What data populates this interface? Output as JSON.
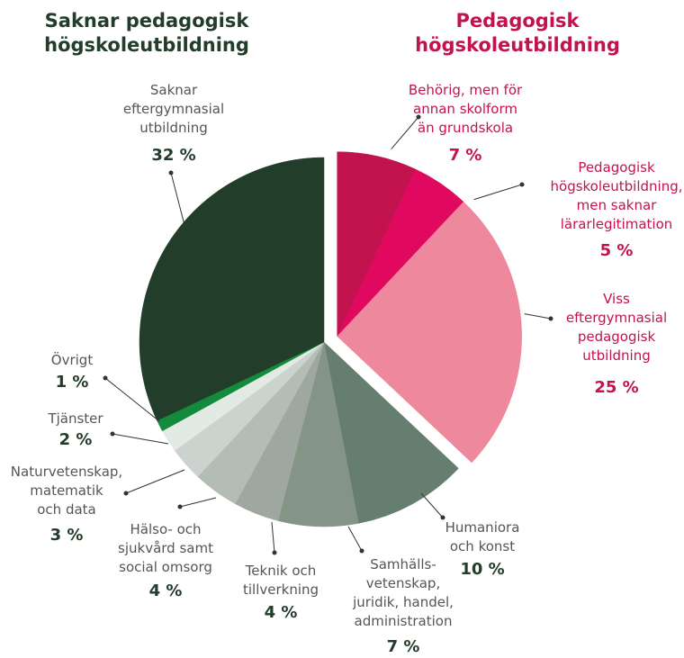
{
  "chart_data": {
    "type": "pie",
    "groups": [
      {
        "title": "Pedagogisk\nhögskoleutbildning",
        "color": "#c2134f",
        "explode": true,
        "categories": [
          "Behörig, men för\nannan skolform\nän grundskola",
          "Pedagogisk\nhögskoleutbildning,\nmen saknar\nlärarlegitimation",
          "Viss\neftergymnasial\npedagogisk\nutbildning"
        ],
        "values": [
          7,
          5,
          25
        ],
        "value_labels": [
          "7 %",
          "5 %",
          "25 %"
        ],
        "colors": [
          "#c2134f",
          "#e0095f",
          "#ee889c"
        ]
      },
      {
        "title": "Saknar pedagogisk\nhögskoleutbildning",
        "color": "#233d2b",
        "explode": false,
        "categories": [
          "Humaniora\noch konst",
          "Samhälls-\nvetenskap,\njuridik, handel,\nadministration",
          "Teknik och\ntillverkning",
          "Hälso- och\nsjukvård samt\nsocial omsorg",
          "Naturvetenskap,\nmatematik\noch data",
          "Tjänster",
          "Övrigt",
          "Saknar\neftergymnasial\nutbildning"
        ],
        "values": [
          10,
          7,
          4,
          4,
          3,
          2,
          1,
          32
        ],
        "value_labels": [
          "10 %",
          "7 %",
          "4 %",
          "4 %",
          "3 %",
          "2 %",
          "1 %",
          "32 %"
        ],
        "colors": [
          "#667e70",
          "#849487",
          "#9ea8a0",
          "#b4bcb6",
          "#ccd2cd",
          "#e3eae4",
          "#138a3c",
          "#233d2b"
        ]
      }
    ]
  }
}
